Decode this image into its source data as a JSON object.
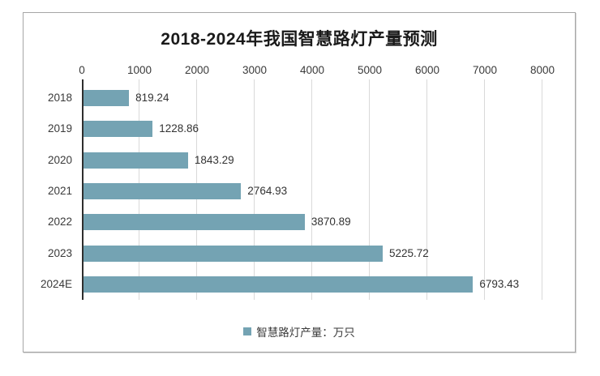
{
  "chart_data": {
    "type": "bar",
    "orientation": "horizontal",
    "title": "2018-2024年我国智慧路灯产量预测",
    "categories": [
      "2018",
      "2019",
      "2020",
      "2021",
      "2022",
      "2023",
      "2024E"
    ],
    "values": [
      819.24,
      1228.86,
      1843.29,
      2764.93,
      3870.89,
      5225.72,
      6793.43
    ],
    "value_labels": [
      "819.24",
      "1228.86",
      "1843.29",
      "2764.93",
      "3870.89",
      "5225.72",
      "6793.43"
    ],
    "xlim": [
      0,
      8000
    ],
    "x_ticks": [
      "0",
      "1000",
      "2000",
      "3000",
      "4000",
      "5000",
      "6000",
      "7000",
      "8000"
    ],
    "grid": true,
    "legend_position": "bottom",
    "legend": [
      {
        "label": "智慧路灯产量：万只",
        "color": "#74a3b3"
      }
    ],
    "colors": {
      "bar": "#74a3b3",
      "gridline": "#d9d9d9",
      "axis_line": "#2e2e2e",
      "text": "#3a3a3a",
      "title": "#1a1a1a",
      "frame_border": "#a6a6a6"
    }
  }
}
